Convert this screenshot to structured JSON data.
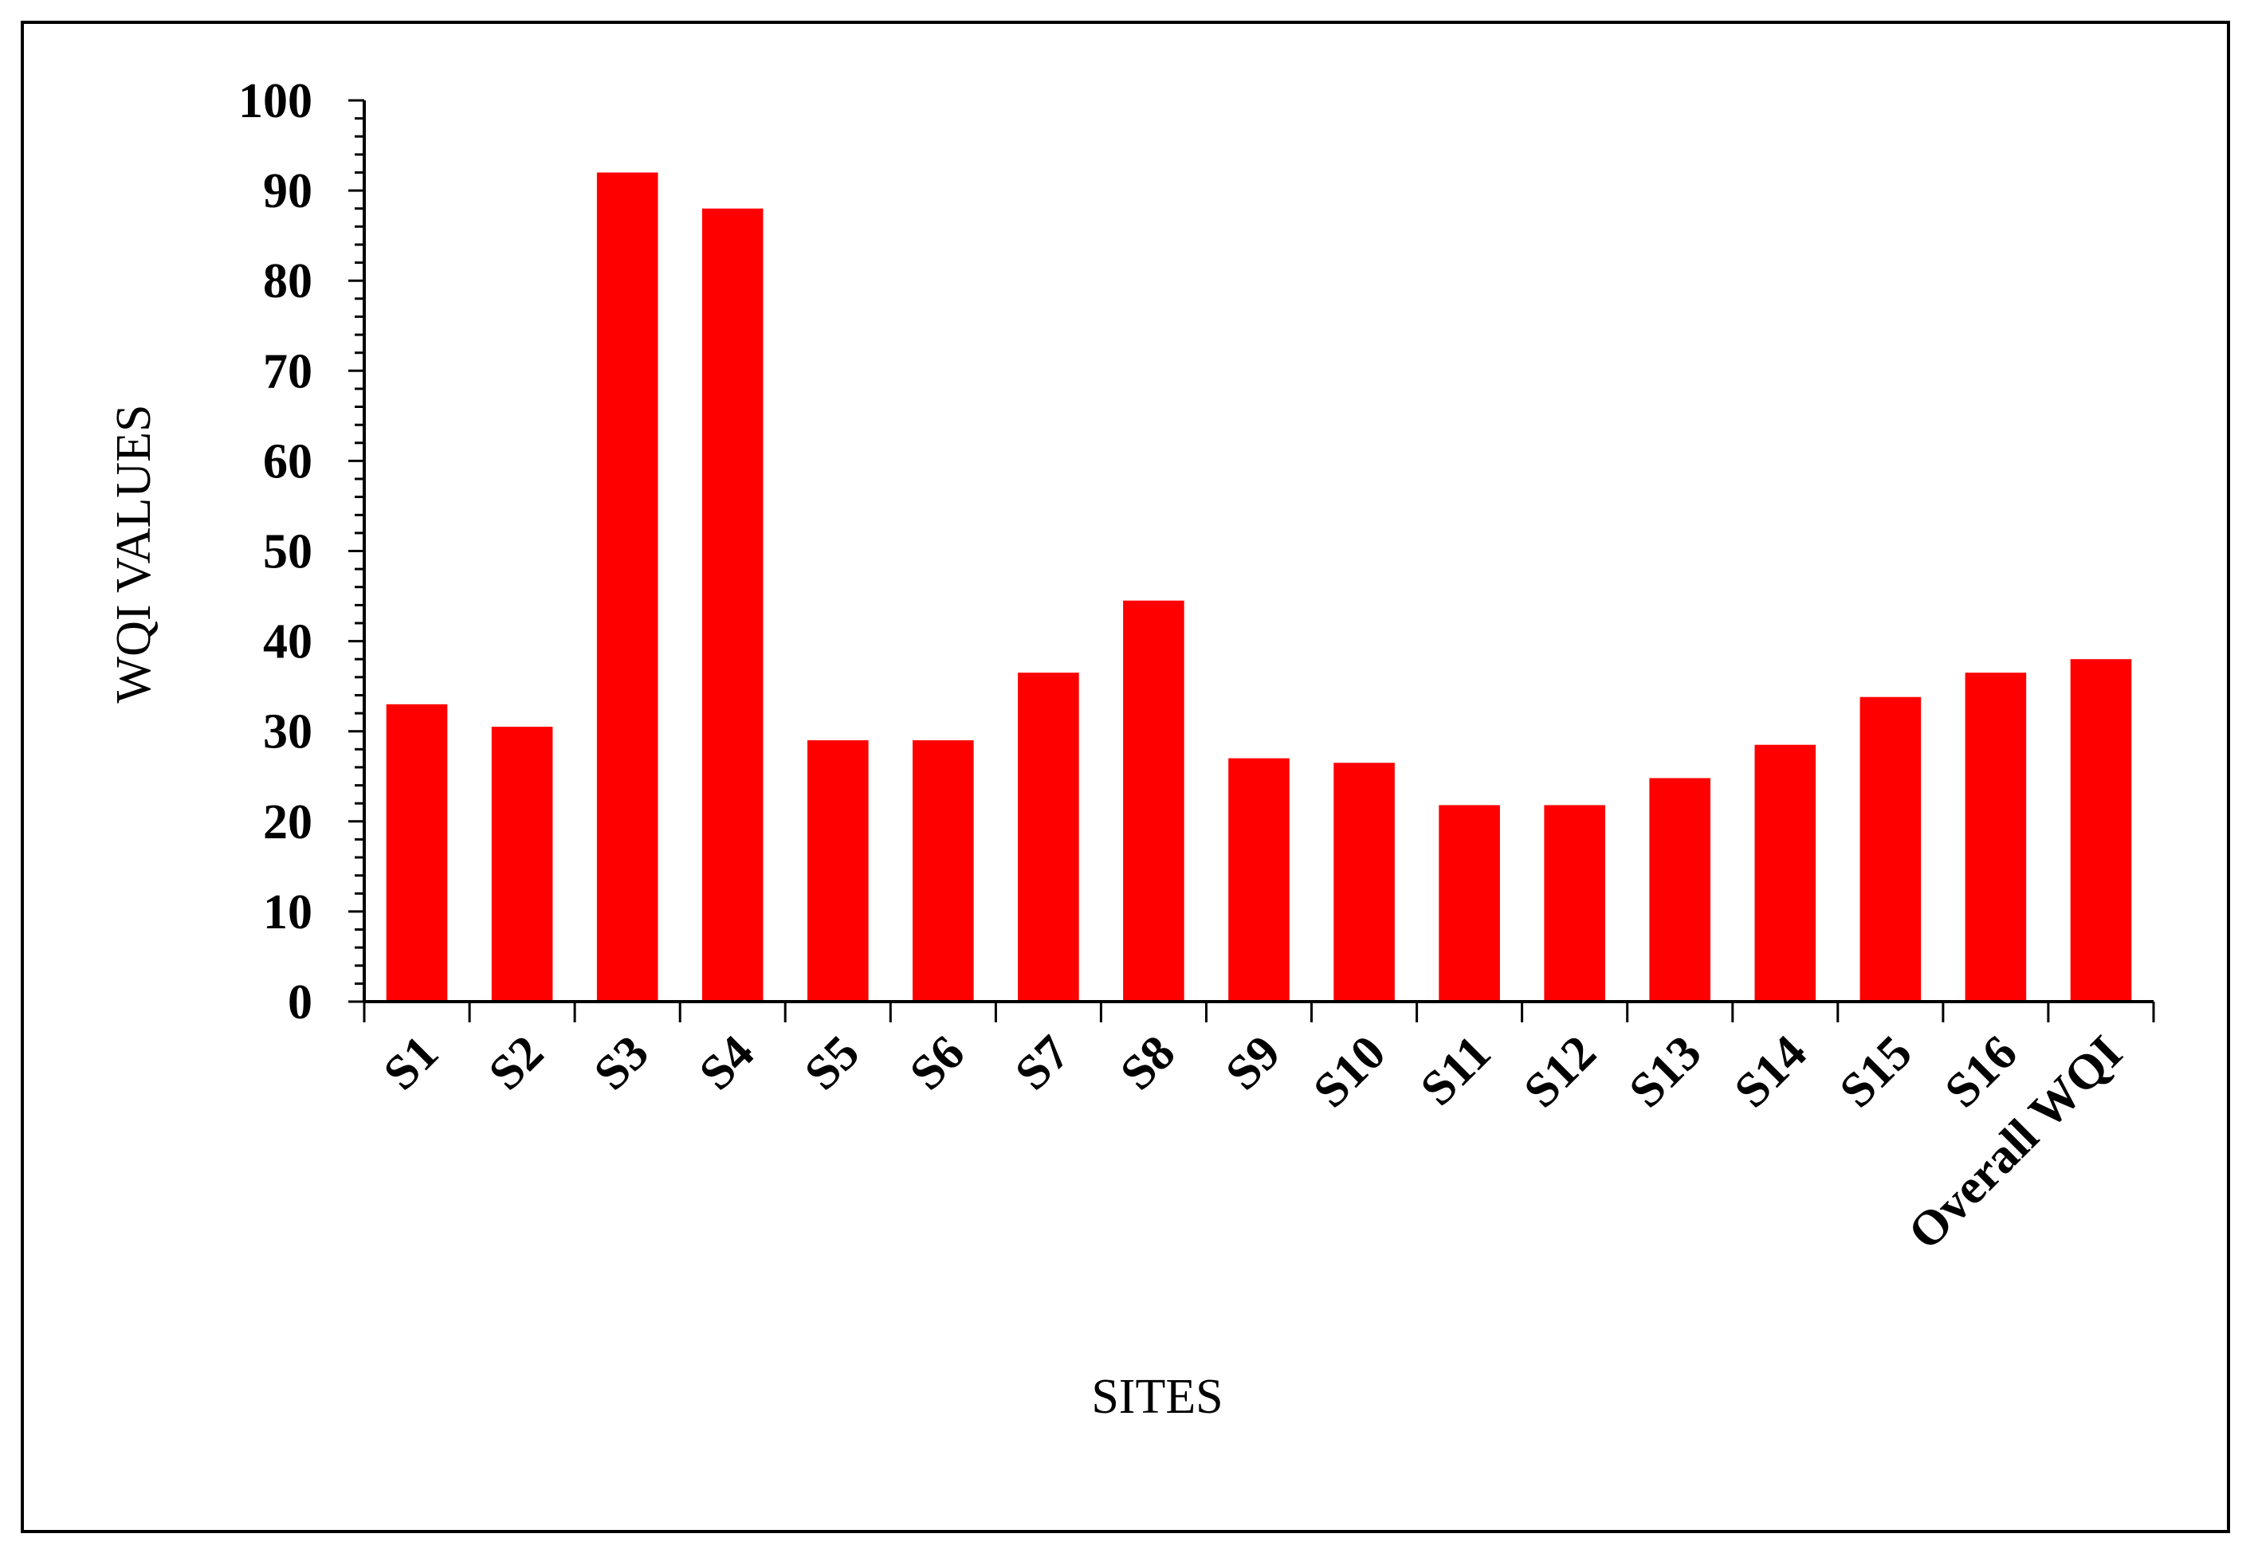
{
  "chart_data": {
    "type": "bar",
    "categories": [
      "S1",
      "S2",
      "S3",
      "S4",
      "S5",
      "S6",
      "S7",
      "S8",
      "S9",
      "S10",
      "S11",
      "S12",
      "S13",
      "S14",
      "S15",
      "S16",
      "Overall WQI"
    ],
    "values": [
      33,
      30.5,
      92,
      88,
      29,
      29,
      36.5,
      44.5,
      27,
      26.5,
      21.8,
      21.8,
      24.8,
      28.5,
      33.8,
      36.5,
      38
    ],
    "xlabel": "SITES",
    "ylabel": "WQI VALUES",
    "ylim": [
      0,
      100
    ],
    "yticks": [
      0,
      10,
      20,
      30,
      40,
      50,
      60,
      70,
      80,
      90,
      100
    ],
    "bar_color": "#ff0000",
    "grid": false,
    "legend": "none"
  }
}
